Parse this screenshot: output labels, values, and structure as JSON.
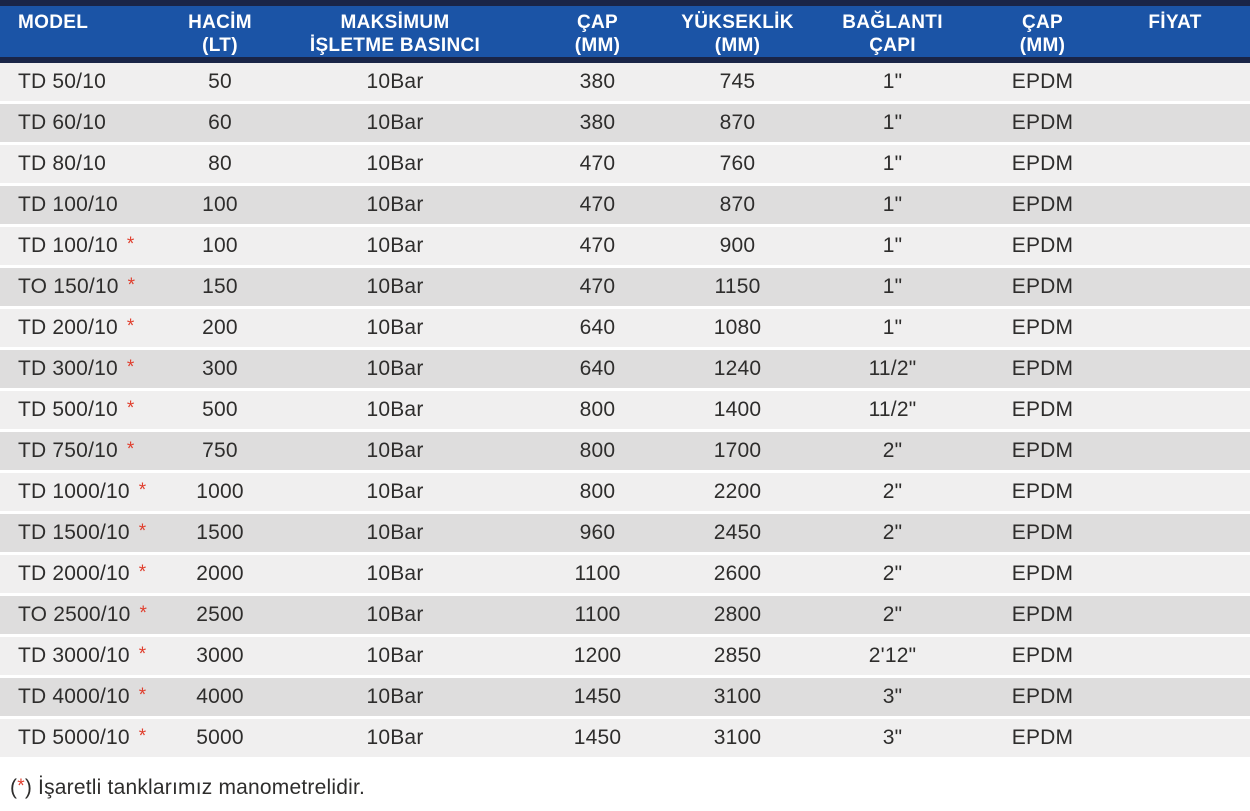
{
  "table": {
    "columns": [
      {
        "id": "model",
        "lines": [
          "MODEL"
        ]
      },
      {
        "id": "hacim",
        "lines": [
          "HACİM",
          "(LT)"
        ]
      },
      {
        "id": "basinc",
        "lines": [
          "MAKSİMUM",
          "İŞLETME BASINCI"
        ]
      },
      {
        "id": "cap",
        "lines": [
          "ÇAP",
          "(MM)"
        ]
      },
      {
        "id": "yukseklik",
        "lines": [
          "YÜKSEKLİK",
          "(MM)"
        ]
      },
      {
        "id": "baglanti",
        "lines": [
          "BAĞLANTI",
          "ÇAPI"
        ]
      },
      {
        "id": "membran",
        "lines": [
          "ÇAP",
          "(MM)"
        ]
      },
      {
        "id": "fiyat",
        "lines": [
          "FİYAT"
        ]
      }
    ],
    "rows": [
      {
        "model": "TD 50/10",
        "star": false,
        "hacim": "50",
        "basinc": "10Bar",
        "cap": "380",
        "yukseklik": "745",
        "baglanti": "1\"",
        "membran": "EPDM",
        "fiyat": ""
      },
      {
        "model": "TD 60/10",
        "star": false,
        "hacim": "60",
        "basinc": "10Bar",
        "cap": "380",
        "yukseklik": "870",
        "baglanti": "1\"",
        "membran": "EPDM",
        "fiyat": ""
      },
      {
        "model": "TD 80/10",
        "star": false,
        "hacim": "80",
        "basinc": "10Bar",
        "cap": "470",
        "yukseklik": "760",
        "baglanti": "1\"",
        "membran": "EPDM",
        "fiyat": ""
      },
      {
        "model": "TD 100/10",
        "star": false,
        "hacim": "100",
        "basinc": "10Bar",
        "cap": "470",
        "yukseklik": "870",
        "baglanti": "1\"",
        "membran": "EPDM",
        "fiyat": ""
      },
      {
        "model": "TD 100/10",
        "star": true,
        "hacim": "100",
        "basinc": "10Bar",
        "cap": "470",
        "yukseklik": "900",
        "baglanti": "1\"",
        "membran": "EPDM",
        "fiyat": ""
      },
      {
        "model": "TO 150/10",
        "star": true,
        "hacim": "150",
        "basinc": "10Bar",
        "cap": "470",
        "yukseklik": "1150",
        "baglanti": "1\"",
        "membran": "EPDM",
        "fiyat": ""
      },
      {
        "model": "TD 200/10",
        "star": true,
        "hacim": "200",
        "basinc": "10Bar",
        "cap": "640",
        "yukseklik": "1080",
        "baglanti": "1\"",
        "membran": "EPDM",
        "fiyat": ""
      },
      {
        "model": "TD 300/10",
        "star": true,
        "hacim": "300",
        "basinc": "10Bar",
        "cap": "640",
        "yukseklik": "1240",
        "baglanti": "11/2\"",
        "membran": "EPDM",
        "fiyat": ""
      },
      {
        "model": "TD 500/10",
        "star": true,
        "hacim": "500",
        "basinc": "10Bar",
        "cap": "800",
        "yukseklik": "1400",
        "baglanti": "11/2\"",
        "membran": "EPDM",
        "fiyat": ""
      },
      {
        "model": "TD 750/10",
        "star": true,
        "hacim": "750",
        "basinc": "10Bar",
        "cap": "800",
        "yukseklik": "1700",
        "baglanti": "2\"",
        "membran": "EPDM",
        "fiyat": ""
      },
      {
        "model": "TD 1000/10",
        "star": true,
        "hacim": "1000",
        "basinc": "10Bar",
        "cap": "800",
        "yukseklik": "2200",
        "baglanti": "2\"",
        "membran": "EPDM",
        "fiyat": ""
      },
      {
        "model": "TD 1500/10",
        "star": true,
        "hacim": "1500",
        "basinc": "10Bar",
        "cap": "960",
        "yukseklik": "2450",
        "baglanti": "2\"",
        "membran": "EPDM",
        "fiyat": ""
      },
      {
        "model": "TD 2000/10",
        "star": true,
        "hacim": "2000",
        "basinc": "10Bar",
        "cap": "1100",
        "yukseklik": "2600",
        "baglanti": "2\"",
        "membran": "EPDM",
        "fiyat": ""
      },
      {
        "model": "TO 2500/10",
        "star": true,
        "hacim": "2500",
        "basinc": "10Bar",
        "cap": "1100",
        "yukseklik": "2800",
        "baglanti": "2\"",
        "membran": "EPDM",
        "fiyat": ""
      },
      {
        "model": "TD 3000/10",
        "star": true,
        "hacim": "3000",
        "basinc": "10Bar",
        "cap": "1200",
        "yukseklik": "2850",
        "baglanti": "2'12\"",
        "membran": "EPDM",
        "fiyat": ""
      },
      {
        "model": "TD 4000/10",
        "star": true,
        "hacim": "4000",
        "basinc": "10Bar",
        "cap": "1450",
        "yukseklik": "3100",
        "baglanti": "3\"",
        "membran": "EPDM",
        "fiyat": ""
      },
      {
        "model": "TD 5000/10",
        "star": true,
        "hacim": "5000",
        "basinc": "10Bar",
        "cap": "1450",
        "yukseklik": "3100",
        "baglanti": "3\"",
        "membran": "EPDM",
        "fiyat": ""
      }
    ]
  },
  "footnote": {
    "open": "(",
    "star": "*",
    "close": ")",
    "text": " İşaretli tanklarımız manometrelidir."
  },
  "colors": {
    "header_blue": "#1b54a6",
    "navy_strip": "#1a2547",
    "row_light": "#f0efef",
    "row_dark": "#dedddd",
    "asterisk_red": "#e03e2d",
    "body_text": "#2e2d2c"
  }
}
